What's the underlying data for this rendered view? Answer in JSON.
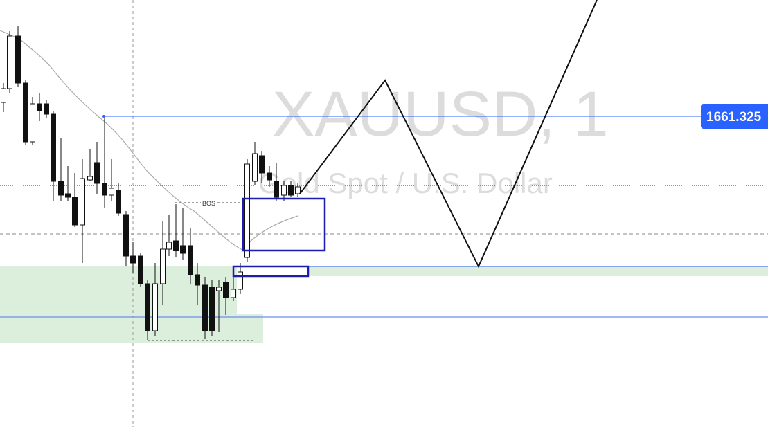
{
  "watermark": {
    "symbol": "XAUUSD, 1",
    "description": "Gold Spot / U.S. Dollar"
  },
  "annotations": {
    "bos": "BOS"
  },
  "price_label": "1661.325"
}
